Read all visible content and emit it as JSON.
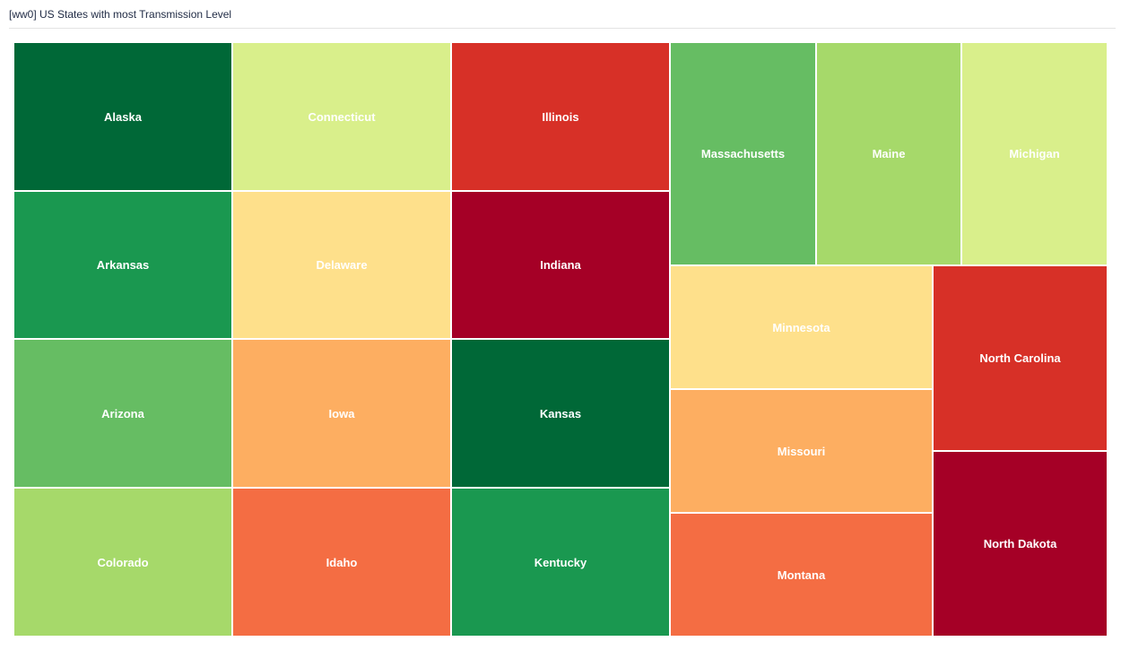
{
  "panel": {
    "title": "[ww0] US States with most Transmission Level"
  },
  "chart_data": {
    "type": "treemap",
    "title": "[ww0] US States with most Transmission Level",
    "items": [
      {
        "label": "Alaska",
        "color": "#006837"
      },
      {
        "label": "Arkansas",
        "color": "#1a9850"
      },
      {
        "label": "Arizona",
        "color": "#66bd63"
      },
      {
        "label": "Colorado",
        "color": "#a6d96a"
      },
      {
        "label": "Connecticut",
        "color": "#d9ef8b"
      },
      {
        "label": "Delaware",
        "color": "#fee08b"
      },
      {
        "label": "Iowa",
        "color": "#fdae61"
      },
      {
        "label": "Idaho",
        "color": "#f46d43"
      },
      {
        "label": "Illinois",
        "color": "#d73027"
      },
      {
        "label": "Indiana",
        "color": "#a50026"
      },
      {
        "label": "Kansas",
        "color": "#006837"
      },
      {
        "label": "Kentucky",
        "color": "#1a9850"
      },
      {
        "label": "Massachusetts",
        "color": "#66bd63"
      },
      {
        "label": "Maine",
        "color": "#a6d96a"
      },
      {
        "label": "Michigan",
        "color": "#d9ef8b"
      },
      {
        "label": "Minnesota",
        "color": "#fee08b"
      },
      {
        "label": "Missouri",
        "color": "#fdae61"
      },
      {
        "label": "Montana",
        "color": "#f46d43"
      },
      {
        "label": "North Carolina",
        "color": "#d73027"
      },
      {
        "label": "North Dakota",
        "color": "#a50026"
      }
    ]
  }
}
